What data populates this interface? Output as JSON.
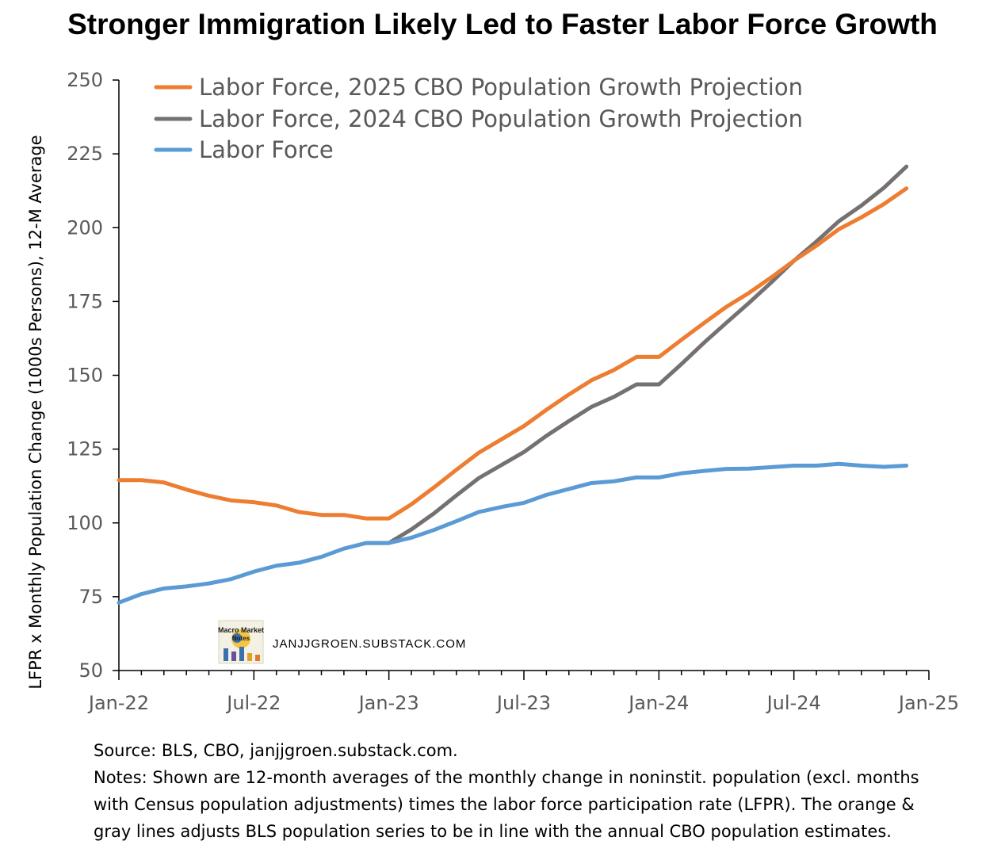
{
  "title": "Stronger Immigration Likely Led to Faster Labor Force Growth",
  "watermark": {
    "text": "JANJJGROEN.SUBSTACK.COM",
    "logo_text": "Macro Market Notes"
  },
  "notes": {
    "source": "Source: BLS, CBO, janjjgroen.substack.com.",
    "lines": [
      "Notes: Shown are 12-month averages of the monthly change in noninstit. population (excl. months",
      "with Census population adjustments) times the labor force participation rate (LFPR). The orange &",
      "gray lines adjusts BLS population series to be in line with the annual CBO population estimates."
    ]
  },
  "chart_data": {
    "type": "line",
    "title": "Stronger Immigration Likely Led to Faster Labor Force Growth",
    "xlabel": "",
    "ylabel": "LFPR x Monthly Population Change (1000s Persons), 12-M Average",
    "ylim": [
      50,
      250
    ],
    "yticks": [
      50,
      75,
      100,
      125,
      150,
      175,
      200,
      225,
      250
    ],
    "xticks": [
      "Jan-22",
      "Jul-22",
      "Jan-23",
      "Jul-23",
      "Jan-24",
      "Jul-24",
      "Jan-25"
    ],
    "x": [
      "Jan-22",
      "Feb-22",
      "Mar-22",
      "Apr-22",
      "May-22",
      "Jun-22",
      "Jul-22",
      "Aug-22",
      "Sep-22",
      "Oct-22",
      "Nov-22",
      "Dec-22",
      "Jan-23",
      "Feb-23",
      "Mar-23",
      "Apr-23",
      "May-23",
      "Jun-23",
      "Jul-23",
      "Aug-23",
      "Sep-23",
      "Oct-23",
      "Nov-23",
      "Dec-23",
      "Jan-24",
      "Feb-24",
      "Mar-24",
      "Apr-24",
      "May-24",
      "Jun-24",
      "Jul-24",
      "Aug-24",
      "Sep-24",
      "Oct-24",
      "Nov-24",
      "Dec-24"
    ],
    "grid": false,
    "legend_position": "top-left",
    "series": [
      {
        "name": "Labor Force, 2025 CBO Population Growth Projection",
        "color": "#ED7D31",
        "values": [
          114.5,
          114.5,
          113.7,
          111.3,
          109.2,
          107.6,
          107.0,
          105.9,
          103.7,
          102.7,
          102.7,
          101.5,
          101.5,
          106.3,
          112.0,
          118.0,
          123.8,
          128.3,
          132.8,
          138.3,
          143.5,
          148.3,
          151.8,
          156.2,
          156.2,
          162.0,
          167.7,
          173.2,
          177.9,
          183.2,
          188.8,
          193.9,
          199.5,
          203.5,
          208.0,
          213.3
        ]
      },
      {
        "name": "Labor Force, 2024 CBO Population Growth Projection",
        "color": "#767171",
        "values": [
          null,
          null,
          null,
          null,
          null,
          null,
          null,
          null,
          null,
          null,
          null,
          93.2,
          93.2,
          97.8,
          103.2,
          109.3,
          115.2,
          119.6,
          124.0,
          129.5,
          134.5,
          139.3,
          142.7,
          146.9,
          146.9,
          153.8,
          161.0,
          167.8,
          174.5,
          181.5,
          188.8,
          195.3,
          202.2,
          207.5,
          213.5,
          220.7
        ]
      },
      {
        "name": "Labor Force",
        "color": "#5B9BD5",
        "values": [
          73.0,
          75.9,
          77.8,
          78.5,
          79.5,
          81.0,
          83.5,
          85.5,
          86.5,
          88.5,
          91.3,
          93.2,
          93.2,
          95.0,
          97.6,
          100.6,
          103.7,
          105.4,
          106.8,
          109.5,
          111.5,
          113.5,
          114.1,
          115.4,
          115.4,
          116.8,
          117.6,
          118.3,
          118.4,
          118.9,
          119.4,
          119.4,
          120.0,
          119.4,
          119.0,
          119.4
        ]
      }
    ]
  }
}
